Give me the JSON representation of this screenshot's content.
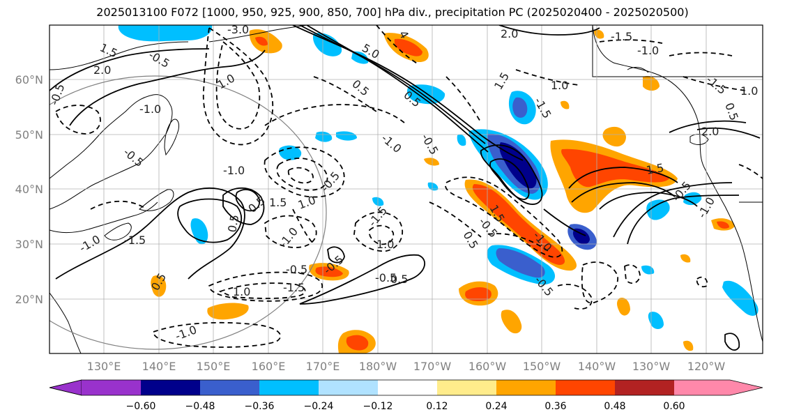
{
  "title": "2025013100 F072 [1000, 950, 925, 900, 850, 700] hPa div., precipitation PC (2025020400 - 2025020500)",
  "map": {
    "lat_labels": [
      "60°N",
      "50°N",
      "40°N",
      "30°N",
      "20°N"
    ],
    "lon_labels": [
      "130°E",
      "140°E",
      "150°E",
      "160°E",
      "170°E",
      "180°W",
      "170°W",
      "160°W",
      "150°W",
      "140°W",
      "130°W",
      "120°W"
    ],
    "contour_labels": [
      "-3.0",
      "5.0",
      "4",
      "2.0",
      "-1.5",
      "-0.5",
      "2.0",
      "1.5",
      "-1.0",
      "-0.5",
      "1.0",
      "-0.5",
      "0.5",
      "-1.0",
      "0.5",
      "-0.5",
      "1.5",
      "1.0",
      "-1.5",
      "-1.0",
      "2.0",
      "1.0",
      "-1.5",
      "0.5",
      "-1.0",
      "1.0",
      "0.5",
      "-0.5",
      "-1.0",
      "0.5",
      "1.5",
      "-1.5",
      "-1.0",
      "0.5",
      "-1.5",
      "1.0",
      "-0.5",
      "-1.5",
      "-0.5",
      "1.0",
      "-0.5",
      "0.5",
      "-1.0",
      "0.5",
      "1.5",
      "-0.5",
      "-1.0",
      "1.5",
      "-0.5",
      "-1.0",
      "-0.5"
    ],
    "colors": {
      "coast": "#000000",
      "grid": "#b0b0b0",
      "circle": "#808080"
    }
  },
  "colorbar": {
    "ticks": [
      "−0.60",
      "−0.48",
      "−0.36",
      "−0.24",
      "−0.12",
      "0.12",
      "0.24",
      "0.36",
      "0.48",
      "0.60"
    ],
    "colors": [
      "#9932CC",
      "#00008B",
      "#3A5FCD",
      "#00BFFF",
      "#B0E2FF",
      "#FFFFFF",
      "#FFEC8B",
      "#FFA500",
      "#FF4500",
      "#B22222",
      "#FF88AA"
    ]
  }
}
